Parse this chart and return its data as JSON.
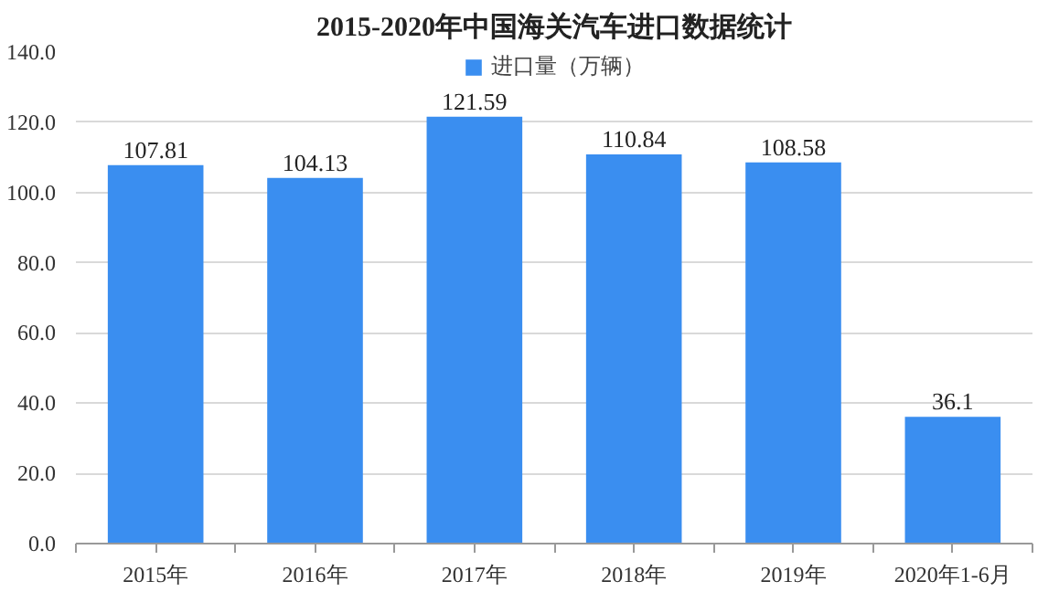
{
  "chart_data": {
    "type": "bar",
    "title": "2015-2020年中国海关汽车进口数据统计",
    "categories": [
      "2015年",
      "2016年",
      "2017年",
      "2018年",
      "2019年",
      "2020年1-6月"
    ],
    "series": [
      {
        "name": "进口量（万辆）",
        "color": "#3a8ef0",
        "values": [
          107.81,
          104.13,
          121.59,
          110.84,
          108.58,
          36.1
        ]
      }
    ],
    "ylim": [
      0,
      140
    ],
    "yticks": [
      {
        "value": 0,
        "label": "0.0"
      },
      {
        "value": 20,
        "label": "20.0"
      },
      {
        "value": 40,
        "label": "40.0"
      },
      {
        "value": 60,
        "label": "60.0"
      },
      {
        "value": 80,
        "label": "80.0"
      },
      {
        "value": 100,
        "label": "100.0"
      },
      {
        "value": 120,
        "label": "120.0"
      },
      {
        "value": 140,
        "label": "140.0"
      }
    ],
    "grid": "y",
    "legend": "top",
    "data_labels": true
  }
}
